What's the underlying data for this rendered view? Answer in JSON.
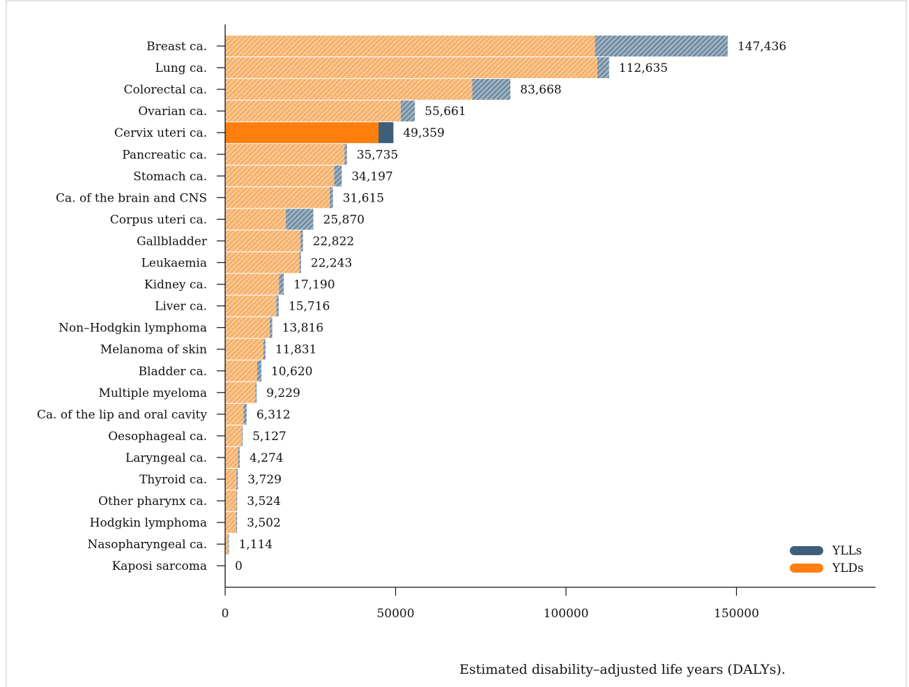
{
  "chart_data": {
    "type": "bar",
    "orientation": "horizontal",
    "stacked": true,
    "title": "",
    "xlabel": "Estimated disability–adjusted life years (DALYs).",
    "ylabel": "",
    "xlim": [
      0,
      190000
    ],
    "xticks": [
      "0",
      "50000",
      "100000",
      "150000"
    ],
    "legend": {
      "position": "bottom-right",
      "entries": [
        "YLLs",
        "YLDs"
      ]
    },
    "colors": {
      "YLLs": "#3d5f7a",
      "YLDs": "#ff7f0e",
      "hatch_yld": "#f4a95c",
      "hatch_yll": "#5a7a93"
    },
    "highlighted_category": "Cervix uteri ca.",
    "categories": [
      "Breast ca.",
      "Lung ca.",
      "Colorectal ca.",
      "Ovarian ca.",
      "Cervix uteri ca.",
      "Pancreatic ca.",
      "Stomach ca.",
      "Ca. of the brain and CNS",
      "Corpus uteri ca.",
      "Gallbladder",
      "Leukaemia",
      "Kidney ca.",
      "Liver ca.",
      "Non–Hodgkin lymphoma",
      "Melanoma of skin",
      "Bladder ca.",
      "Multiple myeloma",
      "Ca. of the lip and oral cavity",
      "Oesophageal ca.",
      "Laryngeal ca.",
      "Thyroid ca.",
      "Other pharynx ca.",
      "Hodgkin lymphoma",
      "Nasopharyngeal ca.",
      "Kaposi sarcoma"
    ],
    "series": [
      {
        "name": "YLDs",
        "values": [
          108500,
          109200,
          72500,
          51500,
          45000,
          35000,
          32000,
          30700,
          17800,
          22100,
          21800,
          15800,
          15000,
          13100,
          11200,
          9400,
          8900,
          5400,
          4900,
          3800,
          3300,
          3300,
          3200,
          900,
          0
        ]
      },
      {
        "name": "YLLs",
        "values": [
          38936,
          3435,
          11168,
          4161,
          4359,
          735,
          2197,
          915,
          8070,
          722,
          443,
          1390,
          716,
          716,
          631,
          1220,
          329,
          912,
          227,
          474,
          429,
          224,
          302,
          214,
          0
        ]
      }
    ],
    "totals": [
      147436,
      112635,
      83668,
      55661,
      49359,
      35735,
      34197,
      31615,
      25870,
      22822,
      22243,
      17190,
      15716,
      13816,
      11831,
      10620,
      9229,
      6312,
      5127,
      4274,
      3729,
      3524,
      3502,
      1114,
      0
    ],
    "total_labels": [
      "147,436",
      "112,635",
      "83,668",
      "55,661",
      "49,359",
      "35,735",
      "34,197",
      "31,615",
      "25,870",
      "22,822",
      "22,243",
      "17,190",
      "15,716",
      "13,816",
      "11,831",
      "10,620",
      "9,229",
      "6,312",
      "5,127",
      "4,274",
      "3,729",
      "3,524",
      "3,502",
      "1,114",
      "0"
    ]
  }
}
